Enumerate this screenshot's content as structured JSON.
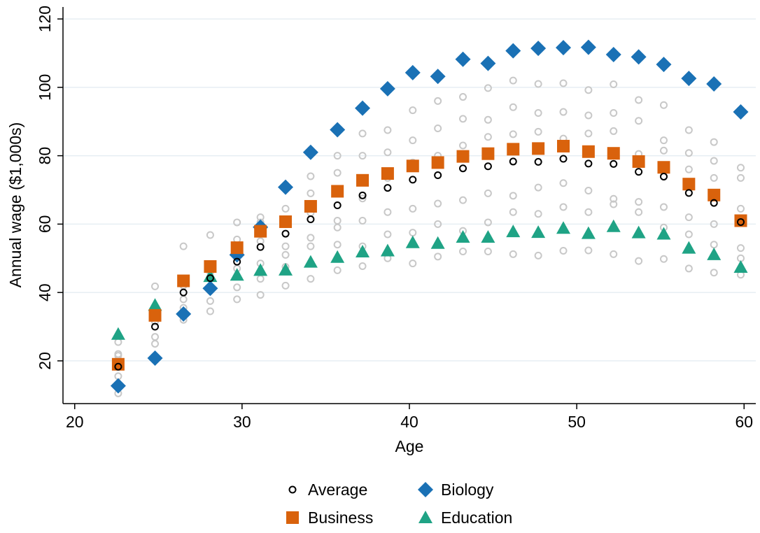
{
  "chart_data": {
    "type": "scatter",
    "x_label": "Age",
    "y_label": "Annual wage ($1,000s)",
    "x": [
      22.6,
      24.8,
      26.5,
      28.1,
      29.7,
      31.1,
      32.6,
      34.1,
      35.7,
      37.2,
      38.7,
      40.2,
      41.7,
      43.2,
      44.7,
      46.2,
      47.7,
      49.2,
      50.7,
      52.2,
      53.7,
      55.2,
      56.7,
      58.2,
      59.8
    ],
    "xlim": [
      19.3,
      60.7
    ],
    "xticks": [
      20,
      30,
      40,
      50,
      60
    ],
    "ylim": [
      7.5,
      123.5
    ],
    "yticks": [
      20,
      40,
      60,
      80,
      100,
      120
    ],
    "grid": true,
    "legend": "bottom",
    "series": [
      {
        "name": "Average",
        "color": "#000000",
        "marker": "circle-open",
        "values": [
          18.3,
          30,
          40,
          44.2,
          49,
          53.3,
          57.2,
          61.4,
          65.5,
          68.4,
          70.6,
          73,
          74.3,
          76.3,
          76.9,
          78.3,
          78.2,
          79.1,
          77.7,
          77.6,
          75.3,
          73.9,
          69.1,
          66.2,
          60.6
        ]
      },
      {
        "name": "Business",
        "color": "#d9620c",
        "marker": "square",
        "values": [
          19,
          33.3,
          43.4,
          47.6,
          53.1,
          57.9,
          60.7,
          65.2,
          69.6,
          72.8,
          74.8,
          77,
          78,
          79.8,
          80.6,
          81.9,
          82.1,
          82.8,
          81.2,
          80.7,
          78.3,
          76.6,
          71.7,
          68.5,
          61
        ]
      },
      {
        "name": "Biology",
        "color": "#1a71b5",
        "marker": "diamond",
        "values": [
          12.7,
          20.8,
          33.7,
          41.2,
          51,
          59.1,
          70.8,
          81,
          87.6,
          93.9,
          99.6,
          104.3,
          103.2,
          108.2,
          107,
          110.7,
          111.4,
          111.6,
          111.7,
          109.6,
          108.9,
          106.7,
          102.6,
          101,
          92.8
        ]
      },
      {
        "name": "Education",
        "color": "#1fa385",
        "marker": "triangle",
        "values": [
          27.8,
          36.3,
          null,
          44.7,
          45.1,
          46.5,
          46.6,
          48.9,
          50.3,
          51.9,
          52.2,
          54.6,
          54.4,
          56.2,
          56.2,
          57.8,
          57.6,
          58.8,
          57.3,
          59.3,
          57.5,
          57.1,
          53,
          51.1,
          47.4
        ]
      },
      {
        "color": "#c8c8c8",
        "marker": "circle-open",
        "x": [
          22.6,
          22.6,
          22.6,
          22.6,
          22.6,
          24.8,
          24.8,
          24.8,
          24.8,
          24.8,
          26.5,
          26.5,
          26.5,
          26.5,
          26.5,
          28.1,
          28.1,
          28.1,
          28.1,
          28.1,
          29.7,
          29.7,
          29.7,
          29.7,
          29.7,
          29.7,
          31.1,
          31.1,
          31.1,
          31.1,
          31.1,
          31.1,
          32.6,
          32.6,
          32.6,
          32.6,
          32.6,
          32.6,
          34.1,
          34.1,
          34.1,
          34.1,
          34.1,
          34.1,
          35.7,
          35.7,
          35.7,
          35.7,
          35.7,
          35.7,
          37.2,
          37.2,
          37.2,
          37.2,
          37.2,
          37.2,
          38.7,
          38.7,
          38.7,
          38.7,
          38.7,
          38.7,
          40.2,
          40.2,
          40.2,
          40.2,
          40.2,
          40.2,
          41.7,
          41.7,
          41.7,
          41.7,
          41.7,
          41.7,
          43.2,
          43.2,
          43.2,
          43.2,
          43.2,
          43.2,
          44.7,
          44.7,
          44.7,
          44.7,
          44.7,
          44.7,
          46.2,
          46.2,
          46.2,
          46.2,
          46.2,
          46.2,
          47.7,
          47.7,
          47.7,
          47.7,
          47.7,
          47.7,
          49.2,
          49.2,
          49.2,
          49.2,
          49.2,
          49.2,
          50.7,
          50.7,
          50.7,
          50.7,
          50.7,
          50.7,
          52.2,
          52.2,
          52.2,
          52.2,
          52.2,
          52.2,
          53.7,
          53.7,
          53.7,
          53.7,
          53.7,
          53.7,
          55.2,
          55.2,
          55.2,
          55.2,
          55.2,
          55.2,
          56.7,
          56.7,
          56.7,
          56.7,
          56.7,
          56.7,
          58.2,
          58.2,
          58.2,
          58.2,
          58.2,
          58.2,
          59.8,
          59.8,
          59.8,
          59.8,
          59.8,
          59.8
        ],
        "values": [
          10.5,
          15.5,
          21.5,
          25.5,
          22,
          25,
          27,
          31.5,
          35,
          41.8,
          32,
          35.5,
          38,
          42,
          53.5,
          34.5,
          37.5,
          40.5,
          46,
          56.8,
          38,
          41.5,
          47,
          52.5,
          55.5,
          60.5,
          39.3,
          44,
          48.5,
          55,
          60.5,
          62,
          42,
          47.5,
          51,
          53.5,
          64.5,
          60,
          44,
          53.5,
          56,
          63.3,
          69,
          74,
          46.5,
          54,
          59,
          61,
          75,
          80,
          47.7,
          53.5,
          61,
          67.5,
          80,
          86.5,
          50,
          57,
          63.5,
          73.5,
          81,
          87.5,
          48.5,
          57.5,
          64.5,
          78,
          84.5,
          93.3,
          50.5,
          60,
          66,
          80,
          88,
          96,
          52,
          58,
          67,
          83,
          90.8,
          97.2,
          52,
          60.5,
          69,
          85.5,
          90.5,
          99.8,
          51.2,
          63.5,
          68.3,
          86.3,
          94.2,
          102,
          50.8,
          63,
          70.7,
          87,
          92.5,
          101,
          52.2,
          65,
          72,
          85,
          92.8,
          101.2,
          52.3,
          63.5,
          69.8,
          86.5,
          91.8,
          99.2,
          51.2,
          65.8,
          67.4,
          87.2,
          92.5,
          100.9,
          49.2,
          63.5,
          66.5,
          80.5,
          90.2,
          96.3,
          49.8,
          59,
          65,
          81.5,
          84.5,
          94.8,
          47,
          57,
          62,
          76,
          80.8,
          87.5,
          45.8,
          54,
          60,
          73.5,
          78.5,
          84,
          45.2,
          50,
          53,
          64.5,
          73.5,
          76.5
        ]
      }
    ]
  }
}
